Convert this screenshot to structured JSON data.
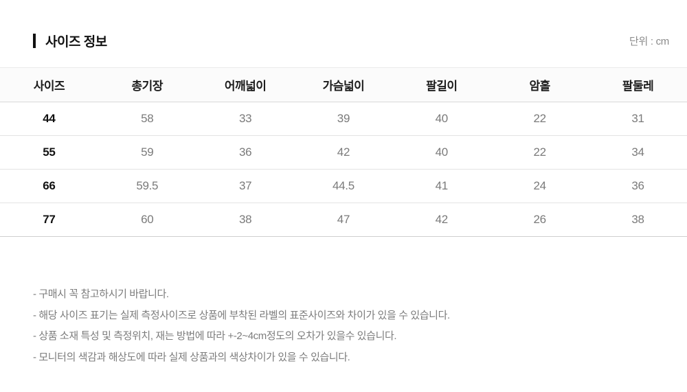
{
  "header": {
    "title": "사이즈 정보",
    "unit_label": "단위 : cm"
  },
  "table": {
    "columns": [
      "사이즈",
      "총기장",
      "어깨넓이",
      "가슴넓이",
      "팔길이",
      "암홀",
      "팔둘레"
    ],
    "rows": [
      {
        "size": "44",
        "values": [
          "58",
          "33",
          "39",
          "40",
          "22",
          "31"
        ]
      },
      {
        "size": "55",
        "values": [
          "59",
          "36",
          "42",
          "40",
          "22",
          "34"
        ]
      },
      {
        "size": "66",
        "values": [
          "59.5",
          "37",
          "44.5",
          "41",
          "24",
          "36"
        ]
      },
      {
        "size": "77",
        "values": [
          "60",
          "38",
          "47",
          "42",
          "26",
          "38"
        ]
      }
    ]
  },
  "notes": [
    "- 구매시 꼭 참고하시기 바랍니다.",
    "- 해당 사이즈 표기는 실제 측정사이즈로 상품에 부착된 라벨의 표준사이즈와 차이가 있을 수 있습니다.",
    "- 상품 소재 특성 및 측정위치, 재는 방법에 따라 +-2~4cm정도의 오차가 있을수 있습니다.",
    "- 모니터의 색감과 해상도에 따라 실제 상품과의 색상차이가 있을 수 있습니다."
  ],
  "colors": {
    "title_text": "#111111",
    "muted_text": "#7a7a7a",
    "header_bg": "#fbfbfb",
    "border": "#e3e3e3"
  }
}
